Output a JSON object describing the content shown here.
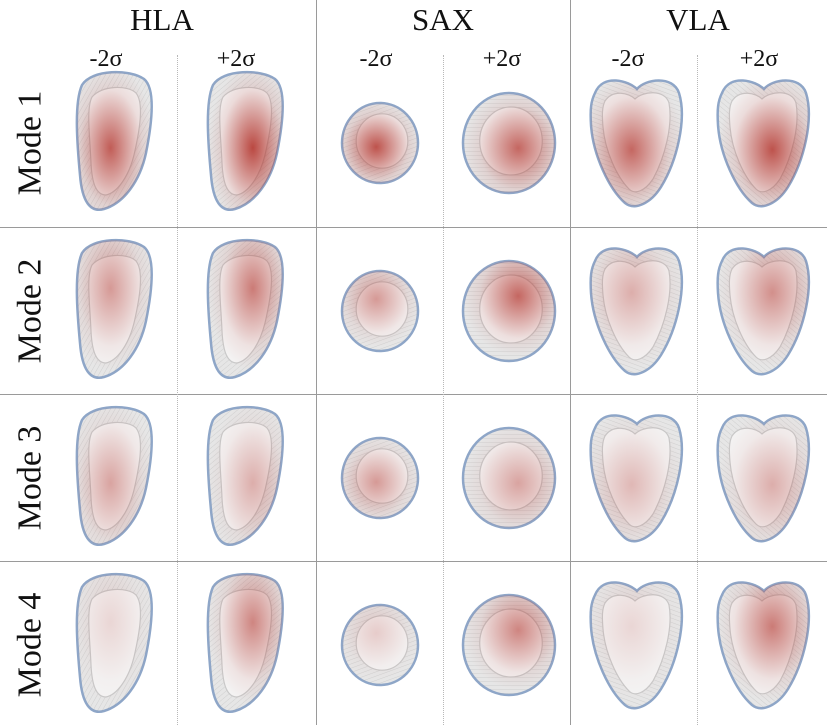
{
  "views": [
    {
      "title": "HLA",
      "shape": "hla"
    },
    {
      "title": "SAX",
      "shape": "sax"
    },
    {
      "title": "VLA",
      "shape": "vla"
    }
  ],
  "sigma_labels": [
    "-2σ",
    "+2σ"
  ],
  "modes": [
    "Mode 1",
    "Mode 2",
    "Mode 3",
    "Mode 4"
  ],
  "colors": {
    "surface": "#e6e6e6",
    "edge_blue": "#8ea6c8",
    "highlight_red": "#b02a22",
    "divider": "#9a9a9a",
    "background": "#ffffff"
  },
  "red_intensity": [
    [
      0.75,
      0.85,
      0.8,
      0.7,
      0.7,
      0.8
    ],
    [
      0.45,
      0.6,
      0.45,
      0.7,
      0.35,
      0.5
    ],
    [
      0.4,
      0.35,
      0.45,
      0.4,
      0.3,
      0.35
    ],
    [
      0.15,
      0.55,
      0.2,
      0.55,
      0.15,
      0.6
    ]
  ]
}
